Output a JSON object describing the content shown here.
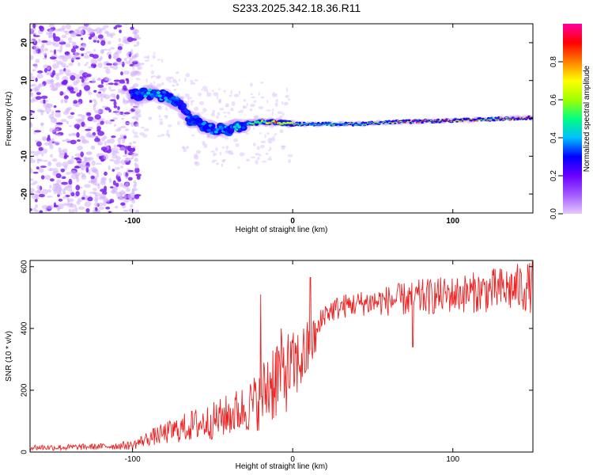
{
  "title": "S233.2025.342.18.36.R11",
  "chart_data": [
    {
      "type": "heatmap",
      "xlabel": "Height of straight line (km)",
      "ylabel": "Frequency (Hz)",
      "xlim": [
        -164,
        150
      ],
      "ylim": [
        -25,
        25
      ],
      "xticks": [
        -100,
        0,
        100
      ],
      "yticks": [
        -20,
        -10,
        0,
        10,
        20
      ],
      "colorbar": {
        "label": "Normalized spectral amplitude",
        "range": [
          0.0,
          1.0
        ],
        "ticks": [
          "0.0",
          "0.2",
          "0.4",
          "0.6",
          "0.8"
        ],
        "stops": [
          "#e6c8ff",
          "#a259ff",
          "#6a00ff",
          "#0000ff",
          "#00bfff",
          "#00ff80",
          "#a0ff00",
          "#ffff00",
          "#ff8000",
          "#ff0000",
          "#ff00a0"
        ]
      },
      "ridge": {
        "x": [
          -100,
          -90,
          -80,
          -70,
          -65,
          -60,
          -50,
          -40,
          -30,
          -20,
          -10,
          0,
          20,
          40,
          60,
          80,
          100,
          120,
          150
        ],
        "frequency": [
          6,
          6.5,
          6,
          4,
          0,
          -1,
          -3,
          -3,
          -1.5,
          -1,
          -1,
          -1.5,
          -1.5,
          -1.5,
          -1,
          -0.8,
          -0.6,
          -0.3,
          0.2
        ],
        "peak_amplitude": [
          0.3,
          0.45,
          0.4,
          0.35,
          0.35,
          0.35,
          0.4,
          0.4,
          0.45,
          0.6,
          0.85,
          0.7,
          0.55,
          0.6,
          0.65,
          0.95,
          0.9,
          0.75,
          0.95
        ]
      },
      "noise_region": {
        "x_from": -164,
        "x_to": -100,
        "amplitude": 0.12
      }
    },
    {
      "type": "line",
      "xlabel": "Height of straight line (km)",
      "ylabel": "SNR (10 * v/v)",
      "xlim": [
        -164,
        150
      ],
      "ylim": [
        0,
        620
      ],
      "xticks": [
        -100,
        0,
        100
      ],
      "yticks": [
        0,
        200,
        400,
        600
      ],
      "series": [
        {
          "name": "SNR",
          "color": "#ee2222",
          "x": [
            -164,
            -140,
            -120,
            -100,
            -90,
            -80,
            -70,
            -60,
            -50,
            -40,
            -30,
            -20,
            -15,
            -10,
            -5,
            0,
            5,
            10,
            15,
            20,
            30,
            40,
            50,
            60,
            70,
            80,
            90,
            100,
            110,
            120,
            130,
            140,
            150
          ],
          "y": [
            15,
            15,
            18,
            22,
            45,
            60,
            75,
            90,
            100,
            120,
            140,
            170,
            220,
            250,
            260,
            270,
            300,
            330,
            380,
            450,
            470,
            480,
            485,
            490,
            495,
            500,
            505,
            510,
            515,
            520,
            525,
            530,
            535
          ],
          "spread": [
            10,
            10,
            10,
            15,
            25,
            35,
            45,
            55,
            60,
            70,
            80,
            100,
            140,
            150,
            140,
            120,
            110,
            100,
            60,
            40,
            40,
            40,
            45,
            50,
            55,
            60,
            60,
            60,
            65,
            70,
            75,
            80,
            85
          ]
        }
      ],
      "annotations": [
        {
          "x": -20,
          "y": 510,
          "note": "spike"
        },
        {
          "x": 11,
          "y": 565,
          "note": "spike"
        },
        {
          "x": 75,
          "y": 340,
          "note": "dip"
        }
      ]
    }
  ]
}
